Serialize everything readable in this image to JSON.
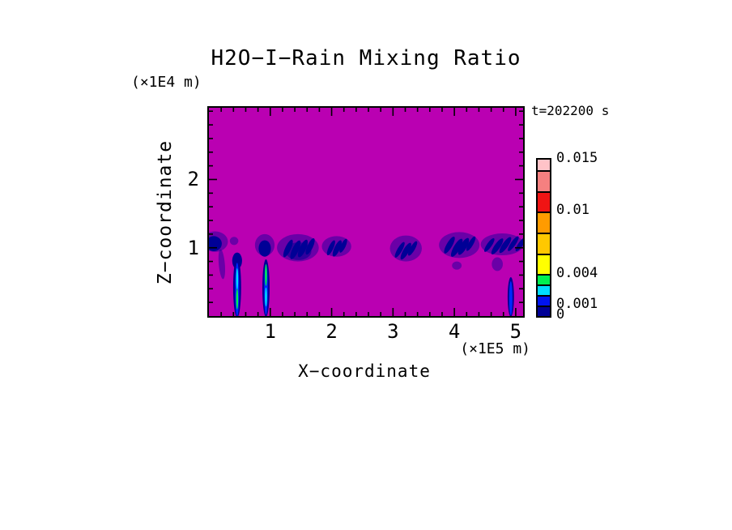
{
  "title": "H2O−I−Rain Mixing Ratio",
  "chart_data": {
    "type": "heatmap",
    "title": "H2O−I−Rain Mixing Ratio",
    "time_label": "t=202200 s",
    "xlabel": "X−coordinate",
    "ylabel": "Z−coordinate",
    "x_unit": "(×1E5 m)",
    "y_unit": "(×1E4 m)",
    "x_range": [
      0,
      5.12
    ],
    "y_range": [
      0,
      3.05
    ],
    "x_major_ticks": [
      1,
      2,
      3,
      4,
      5
    ],
    "x_tick_labels": [
      "1",
      "2",
      "3",
      "4",
      "5"
    ],
    "y_major_ticks": [
      1,
      2
    ],
    "y_tick_labels": [
      "1",
      "2"
    ],
    "minor_tick_step": 0.2,
    "grid": false,
    "field_background_color": "#BA00B2",
    "levels": [
      0,
      0.001,
      0.002,
      0.003,
      0.004,
      0.006,
      0.008,
      0.01,
      0.012,
      0.014,
      0.015
    ],
    "palette_bottom_to_top": [
      "#000096",
      "#0014F0",
      "#00DCFF",
      "#00F050",
      "#FFFF00",
      "#FFC800",
      "#FF9B00",
      "#F01414",
      "#F58080",
      "#FFC3C8"
    ],
    "colorbar_tick_labels": [
      {
        "value": 0.015,
        "label": "0.015"
      },
      {
        "value": 0.01,
        "label": "0.01"
      },
      {
        "value": 0.004,
        "label": "0.004"
      },
      {
        "value": 0.001,
        "label": "0.001"
      },
      {
        "value": 0,
        "label": "0"
      }
    ],
    "feature_colors": {
      "fringe": "rgba(25,0,155,0.5)",
      "navy": "#000096",
      "blue": "#0028FF",
      "cyan": "#00DCFF",
      "green": "#00F050"
    },
    "features_format": "x,y,rx,ry,rot_deg,color,opacity",
    "features": [
      [
        0.1,
        1.09,
        0.21,
        0.15,
        0,
        "fringe",
        1
      ],
      [
        0.08,
        1.06,
        0.13,
        0.11,
        0,
        "navy",
        1
      ],
      [
        0.21,
        0.76,
        0.05,
        0.22,
        -5,
        "fringe",
        1
      ],
      [
        0.41,
        1.1,
        0.07,
        0.06,
        0,
        "fringe",
        1
      ],
      [
        0.46,
        0.81,
        0.08,
        0.12,
        0,
        "navy",
        1
      ],
      [
        0.46,
        0.42,
        0.065,
        0.44,
        0,
        "navy",
        1
      ],
      [
        0.46,
        0.39,
        0.033,
        0.39,
        0,
        "blue",
        1
      ],
      [
        0.46,
        0.54,
        0.017,
        0.16,
        0,
        "cyan",
        1
      ],
      [
        0.46,
        0.25,
        0.017,
        0.15,
        0,
        "green",
        1
      ],
      [
        0.91,
        1.04,
        0.16,
        0.16,
        0,
        "fringe",
        1
      ],
      [
        0.91,
        0.99,
        0.1,
        0.12,
        0,
        "navy",
        1
      ],
      [
        0.93,
        0.41,
        0.059,
        0.42,
        0,
        "navy",
        1
      ],
      [
        0.93,
        0.39,
        0.029,
        0.37,
        0,
        "blue",
        1
      ],
      [
        0.93,
        0.6,
        0.017,
        0.16,
        0,
        "green",
        1
      ],
      [
        0.93,
        0.28,
        0.017,
        0.14,
        0,
        "cyan",
        1
      ],
      [
        1.45,
        1.0,
        0.34,
        0.2,
        0,
        "fringe",
        1
      ],
      [
        1.46,
        0.95,
        0.21,
        0.13,
        0,
        "navy",
        0.55
      ],
      [
        1.29,
        0.99,
        0.046,
        0.14,
        25,
        "navy",
        1
      ],
      [
        1.41,
        0.97,
        0.052,
        0.15,
        25,
        "navy",
        1
      ],
      [
        1.53,
        0.99,
        0.052,
        0.14,
        25,
        "navy",
        1
      ],
      [
        1.65,
        1.02,
        0.046,
        0.13,
        25,
        "navy",
        1
      ],
      [
        2.08,
        1.02,
        0.24,
        0.15,
        0,
        "fringe",
        1
      ],
      [
        1.99,
        1.0,
        0.039,
        0.12,
        25,
        "navy",
        1
      ],
      [
        2.09,
        0.99,
        0.046,
        0.13,
        25,
        "navy",
        1
      ],
      [
        2.19,
        1.03,
        0.039,
        0.11,
        25,
        "navy",
        1
      ],
      [
        3.21,
        0.99,
        0.26,
        0.19,
        0,
        "fringe",
        1
      ],
      [
        3.11,
        0.97,
        0.039,
        0.13,
        30,
        "navy",
        1
      ],
      [
        3.21,
        0.95,
        0.046,
        0.14,
        30,
        "navy",
        1
      ],
      [
        3.32,
        0.99,
        0.039,
        0.12,
        30,
        "navy",
        1
      ],
      [
        4.08,
        1.04,
        0.33,
        0.19,
        0,
        "fringe",
        1
      ],
      [
        3.92,
        1.04,
        0.046,
        0.14,
        30,
        "navy",
        1
      ],
      [
        4.04,
        1.0,
        0.052,
        0.15,
        30,
        "navy",
        1
      ],
      [
        4.15,
        1.02,
        0.052,
        0.14,
        30,
        "navy",
        1
      ],
      [
        4.27,
        1.06,
        0.039,
        0.12,
        30,
        "navy",
        1
      ],
      [
        4.04,
        0.74,
        0.078,
        0.06,
        0,
        "fringe",
        1
      ],
      [
        4.78,
        1.05,
        0.35,
        0.16,
        0,
        "fringe",
        1
      ],
      [
        4.57,
        1.04,
        0.039,
        0.12,
        35,
        "navy",
        1
      ],
      [
        4.7,
        1.02,
        0.046,
        0.14,
        35,
        "navy",
        1
      ],
      [
        4.83,
        1.04,
        0.046,
        0.14,
        35,
        "navy",
        1
      ],
      [
        4.96,
        1.06,
        0.039,
        0.13,
        35,
        "navy",
        1
      ],
      [
        5.08,
        1.05,
        0.039,
        0.12,
        35,
        "navy",
        1
      ],
      [
        4.7,
        0.76,
        0.09,
        0.1,
        0,
        "fringe",
        1
      ],
      [
        4.92,
        0.28,
        0.052,
        0.29,
        0,
        "navy",
        1
      ],
      [
        4.92,
        0.26,
        0.026,
        0.25,
        0,
        "blue",
        1
      ]
    ]
  }
}
